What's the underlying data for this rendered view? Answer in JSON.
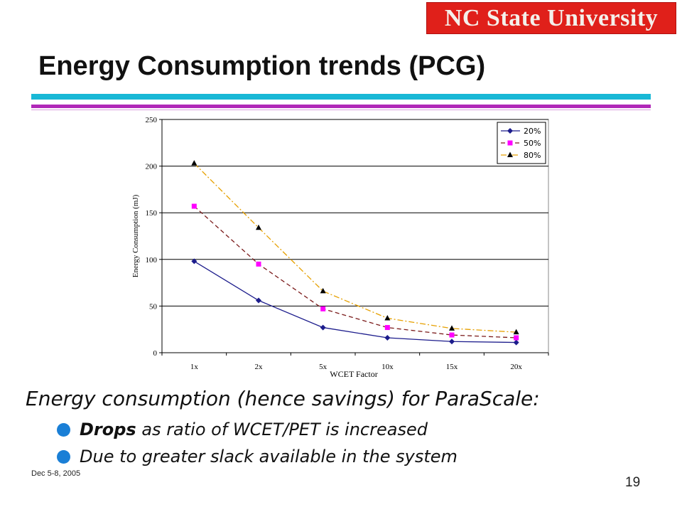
{
  "slide": {
    "logo_text": "NC State University",
    "title": "Energy Consumption trends (PCG)",
    "lead": "Energy consumption (hence savings) for ParaScale:",
    "bullets": [
      {
        "emphasis": "Drops",
        "text": " as ratio of WCET/PET is increased"
      },
      {
        "emphasis": "",
        "text": "Due to greater slack available in the system"
      }
    ],
    "date": "Dec 5-8, 2005",
    "page_number": "19"
  },
  "chart_data": {
    "type": "line",
    "xlabel": "WCET Factor",
    "ylabel": "Energy Consumption (mJ)",
    "categories": [
      "1x",
      "2x",
      "5x",
      "10x",
      "15x",
      "20x"
    ],
    "ylim": [
      0,
      250
    ],
    "yticks": [
      "0",
      "50",
      "100",
      "150",
      "200",
      "250"
    ],
    "grid": true,
    "legend_position": "top-right",
    "series": [
      {
        "name": "20%",
        "values": [
          98,
          56,
          27,
          16,
          12,
          11
        ],
        "color": "#1c1c8c",
        "marker": "diamond",
        "dash": "solid"
      },
      {
        "name": "50%",
        "values": [
          157,
          95,
          47,
          27,
          19,
          16
        ],
        "color": "#ff00ff",
        "line_color": "#7a1a1a",
        "marker": "square",
        "dash": "dashed"
      },
      {
        "name": "80%",
        "values": [
          203,
          134,
          66,
          37,
          26,
          22
        ],
        "color": "#000000",
        "line_color": "#e6a000",
        "marker": "triangle",
        "dash": "dashdot"
      }
    ]
  }
}
